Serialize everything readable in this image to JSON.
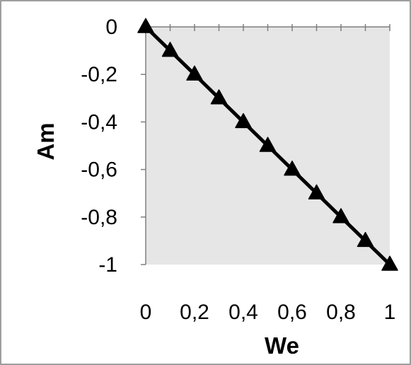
{
  "chart_data": {
    "type": "line",
    "title": "",
    "xlabel": "We",
    "ylabel": "Am",
    "xlim": [
      0,
      1
    ],
    "ylim": [
      -1,
      0
    ],
    "x_ticks": [
      0,
      0.2,
      0.4,
      0.6,
      0.8,
      1
    ],
    "x_tick_labels": [
      "0",
      "0,2",
      "0,4",
      "0,6",
      "0,8",
      "1"
    ],
    "y_ticks": [
      0,
      -0.2,
      -0.4,
      -0.6,
      -0.8,
      -1
    ],
    "y_tick_labels": [
      "0",
      "-0,2",
      "-0,4",
      "-0,6",
      "-0,8",
      "-1"
    ],
    "x_minor_ticks": [
      0,
      0.1,
      0.2,
      0.3,
      0.4,
      0.5,
      0.6,
      0.7,
      0.8,
      0.9,
      1
    ],
    "grid": false,
    "legend": "none",
    "series": [
      {
        "marker": "triangle",
        "color": "#000000",
        "x": [
          0,
          0.1,
          0.2,
          0.3,
          0.4,
          0.5,
          0.6,
          0.7,
          0.8,
          0.9,
          1
        ],
        "y": [
          0,
          -0.1,
          -0.2,
          -0.3,
          -0.4,
          -0.5,
          -0.6,
          -0.7,
          -0.8,
          -0.9,
          -1
        ]
      }
    ],
    "colors": {
      "plot_background": "#e6e6e6",
      "line": "#000000",
      "frame": "#7f7f7f"
    }
  }
}
